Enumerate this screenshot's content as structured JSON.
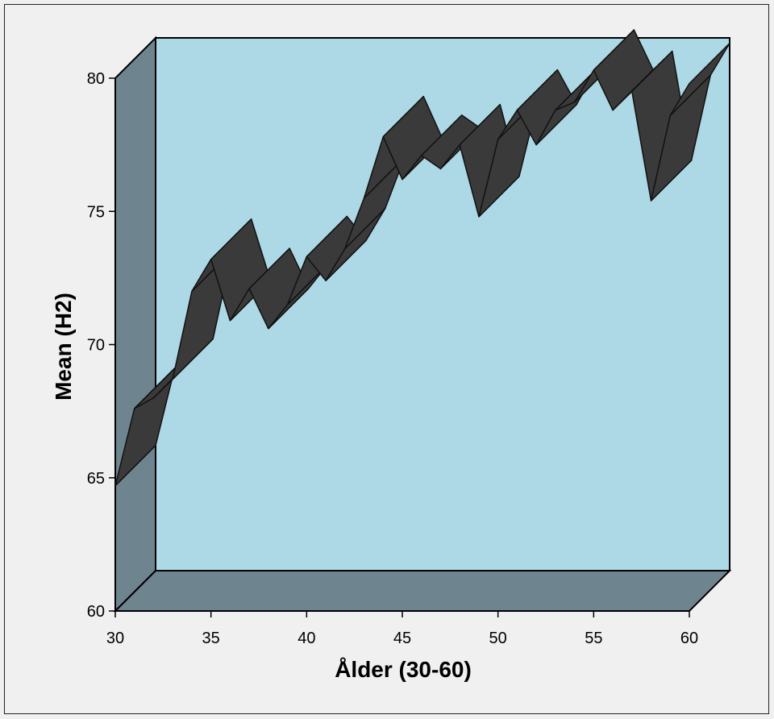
{
  "chart_data": {
    "type": "area",
    "style": "3d-ribbon",
    "xlabel": "Ålder (30-60)",
    "ylabel": "Mean (H2)",
    "xlim": [
      30,
      60
    ],
    "ylim": [
      60,
      80
    ],
    "x_ticks": [
      "30",
      "35",
      "40",
      "45",
      "50",
      "55",
      "60"
    ],
    "y_ticks": [
      "60",
      "65",
      "70",
      "75",
      "80"
    ],
    "x": [
      30,
      31,
      32,
      33,
      34,
      35,
      36,
      37,
      38,
      39,
      40,
      41,
      42,
      43,
      44,
      45,
      46,
      47,
      48,
      49,
      50,
      51,
      52,
      53,
      54,
      55,
      56,
      57,
      58,
      59,
      60
    ],
    "values": [
      64.7,
      67.6,
      68.0,
      68.7,
      72.0,
      73.2,
      70.9,
      72.1,
      70.6,
      71.5,
      73.3,
      72.4,
      73.6,
      75.5,
      77.8,
      76.2,
      77.1,
      76.6,
      77.5,
      74.8,
      77.7,
      78.8,
      77.5,
      78.8,
      79.1,
      80.3,
      78.8,
      79.5,
      75.4,
      78.6,
      79.8
    ],
    "grid": false,
    "legend": "none",
    "colors": {
      "back_wall": "#add8e6",
      "side_floor": "#6e8590",
      "ribbon": "#3a3a3a",
      "outline": "#111111",
      "background": "#f0f0f0"
    }
  }
}
